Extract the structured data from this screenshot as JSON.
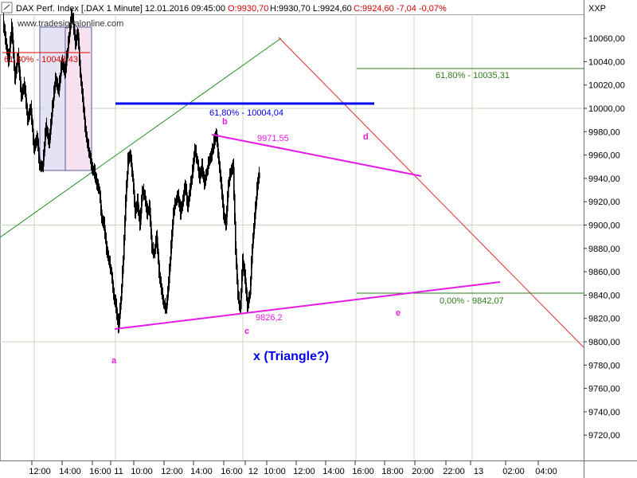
{
  "header": {
    "instrument": "DAX Perf. Index [.DAX  1 Minute] 12.01.2016 09:45:00",
    "ohlc_red": "O:9930,70",
    "ohlc_black": "H:9930,70 L:9924,60",
    "ohlc_tail_red": "C:9924,60 -7,04 -0,07%",
    "symbol": "XXP",
    "watermark": "www.tradesignalonline.com"
  },
  "colors": {
    "candle": "#000000",
    "grid": "#c8d8c0",
    "fib_red": "#e00000",
    "fib_blue": "#0000ee",
    "fib_green": "#2e7d1a",
    "triangle": "#e61ae6",
    "trend_green": "#1f8f1f",
    "trend_red": "#e03030"
  },
  "chart_data": {
    "type": "candlestick",
    "ylim": [
      9700,
      10090
    ],
    "yticks": [
      9720,
      9740,
      9760,
      9780,
      9800,
      9820,
      9840,
      9860,
      9880,
      9900,
      9920,
      9940,
      9960,
      9980,
      10000,
      10020,
      10040,
      10060
    ],
    "ytick_labels": [
      "9720,00",
      "9740,00",
      "9760,00",
      "9780,00",
      "9800,00",
      "9820,00",
      "9840,00",
      "9860,00",
      "9880,00",
      "9900,00",
      "9920,00",
      "9940,00",
      "9960,00",
      "9980,00",
      "10000,00",
      "10020,00",
      "10040,00",
      "10060,00"
    ],
    "xticks": [
      "12:00",
      "14:00",
      "16:00",
      "11",
      "10:00",
      "12:00",
      "14:00",
      "16:00",
      "12",
      "10:00",
      "12:00",
      "14:00",
      "16:00",
      "18:00",
      "20:00",
      "22:00",
      "13",
      "02:00",
      "04:00"
    ],
    "price_path": [
      {
        "t": 0,
        "p": 10075
      },
      {
        "t": 3,
        "p": 10060
      },
      {
        "t": 7,
        "p": 10040
      },
      {
        "t": 11,
        "p": 10070
      },
      {
        "t": 15,
        "p": 10025
      },
      {
        "t": 19,
        "p": 10045
      },
      {
        "t": 23,
        "p": 10010
      },
      {
        "t": 27,
        "p": 10020
      },
      {
        "t": 31,
        "p": 9990
      },
      {
        "t": 35,
        "p": 10000
      },
      {
        "t": 39,
        "p": 9965
      },
      {
        "t": 43,
        "p": 9975
      },
      {
        "t": 46,
        "p": 9950
      },
      {
        "t": 50,
        "p": 9950
      },
      {
        "t": 54,
        "p": 9985
      },
      {
        "t": 58,
        "p": 9970
      },
      {
        "t": 62,
        "p": 10000
      },
      {
        "t": 66,
        "p": 10025
      },
      {
        "t": 70,
        "p": 10015
      },
      {
        "t": 74,
        "p": 10040
      },
      {
        "t": 78,
        "p": 10030
      },
      {
        "t": 82,
        "p": 10055
      },
      {
        "t": 86,
        "p": 10080
      },
      {
        "t": 88,
        "p": 10075
      },
      {
        "t": 91,
        "p": 10055
      },
      {
        "t": 94,
        "p": 10065
      },
      {
        "t": 97,
        "p": 10030
      },
      {
        "t": 100,
        "p": 10010
      },
      {
        "t": 103,
        "p": 9985
      },
      {
        "t": 106,
        "p": 9970
      },
      {
        "t": 109,
        "p": 9960
      },
      {
        "t": 112,
        "p": 9948
      },
      {
        "t": 115,
        "p": 9945
      },
      {
        "t": 118,
        "p": 9935
      },
      {
        "t": 121,
        "p": 9930
      },
      {
        "t": 124,
        "p": 9905
      },
      {
        "t": 127,
        "p": 9900
      },
      {
        "t": 130,
        "p": 9880
      },
      {
        "t": 133,
        "p": 9870
      },
      {
        "t": 136,
        "p": 9860
      },
      {
        "t": 139,
        "p": 9840
      },
      {
        "t": 142,
        "p": 9830
      },
      {
        "t": 145,
        "p": 9812
      },
      {
        "t": 148,
        "p": 9835
      },
      {
        "t": 151,
        "p": 9870
      },
      {
        "t": 154,
        "p": 9920
      },
      {
        "t": 157,
        "p": 9955
      },
      {
        "t": 160,
        "p": 9960
      },
      {
        "t": 163,
        "p": 9940
      },
      {
        "t": 166,
        "p": 9910
      },
      {
        "t": 169,
        "p": 9920
      },
      {
        "t": 172,
        "p": 9900
      },
      {
        "t": 175,
        "p": 9930
      },
      {
        "t": 178,
        "p": 9925
      },
      {
        "t": 181,
        "p": 9910
      },
      {
        "t": 184,
        "p": 9915
      },
      {
        "t": 187,
        "p": 9880
      },
      {
        "t": 190,
        "p": 9875
      },
      {
        "t": 193,
        "p": 9890
      },
      {
        "t": 196,
        "p": 9860
      },
      {
        "t": 199,
        "p": 9845
      },
      {
        "t": 202,
        "p": 9832
      },
      {
        "t": 205,
        "p": 9828
      },
      {
        "t": 208,
        "p": 9850
      },
      {
        "t": 211,
        "p": 9880
      },
      {
        "t": 214,
        "p": 9910
      },
      {
        "t": 217,
        "p": 9920
      },
      {
        "t": 220,
        "p": 9925
      },
      {
        "t": 223,
        "p": 9910
      },
      {
        "t": 226,
        "p": 9920
      },
      {
        "t": 229,
        "p": 9935
      },
      {
        "t": 232,
        "p": 9915
      },
      {
        "t": 235,
        "p": 9930
      },
      {
        "t": 238,
        "p": 9945
      },
      {
        "t": 241,
        "p": 9965
      },
      {
        "t": 244,
        "p": 9955
      },
      {
        "t": 247,
        "p": 9940
      },
      {
        "t": 250,
        "p": 9950
      },
      {
        "t": 253,
        "p": 9935
      },
      {
        "t": 256,
        "p": 9945
      },
      {
        "t": 259,
        "p": 9955
      },
      {
        "t": 262,
        "p": 9960
      },
      {
        "t": 265,
        "p": 9970
      },
      {
        "t": 268,
        "p": 9978
      },
      {
        "t": 271,
        "p": 9955
      },
      {
        "t": 274,
        "p": 9935
      },
      {
        "t": 277,
        "p": 9910
      },
      {
        "t": 280,
        "p": 9900
      },
      {
        "t": 283,
        "p": 9935
      },
      {
        "t": 286,
        "p": 9945
      },
      {
        "t": 289,
        "p": 9950
      },
      {
        "t": 292,
        "p": 9880
      },
      {
        "t": 295,
        "p": 9840
      },
      {
        "t": 298,
        "p": 9828
      },
      {
        "t": 301,
        "p": 9870
      },
      {
        "t": 304,
        "p": 9855
      },
      {
        "t": 307,
        "p": 9830
      },
      {
        "t": 310,
        "p": 9840
      },
      {
        "t": 313,
        "p": 9880
      },
      {
        "t": 316,
        "p": 9905
      },
      {
        "t": 319,
        "p": 9930
      },
      {
        "t": 322,
        "p": 9945
      }
    ],
    "overlays": {
      "fib_red_label": "61,80% - 10048,43",
      "fib_blue_label": "61,80% - 10004,04",
      "fib_green_top_label": "61,80% - 10035,31",
      "fib_green_bottom_label": "0,00% - 9842,07",
      "triangle_b_value": "9971,55",
      "triangle_c_value": "9826,2",
      "wave_labels": [
        "a",
        "b",
        "c",
        "d",
        "e"
      ],
      "pattern_title": "x (Triangle?)"
    }
  }
}
